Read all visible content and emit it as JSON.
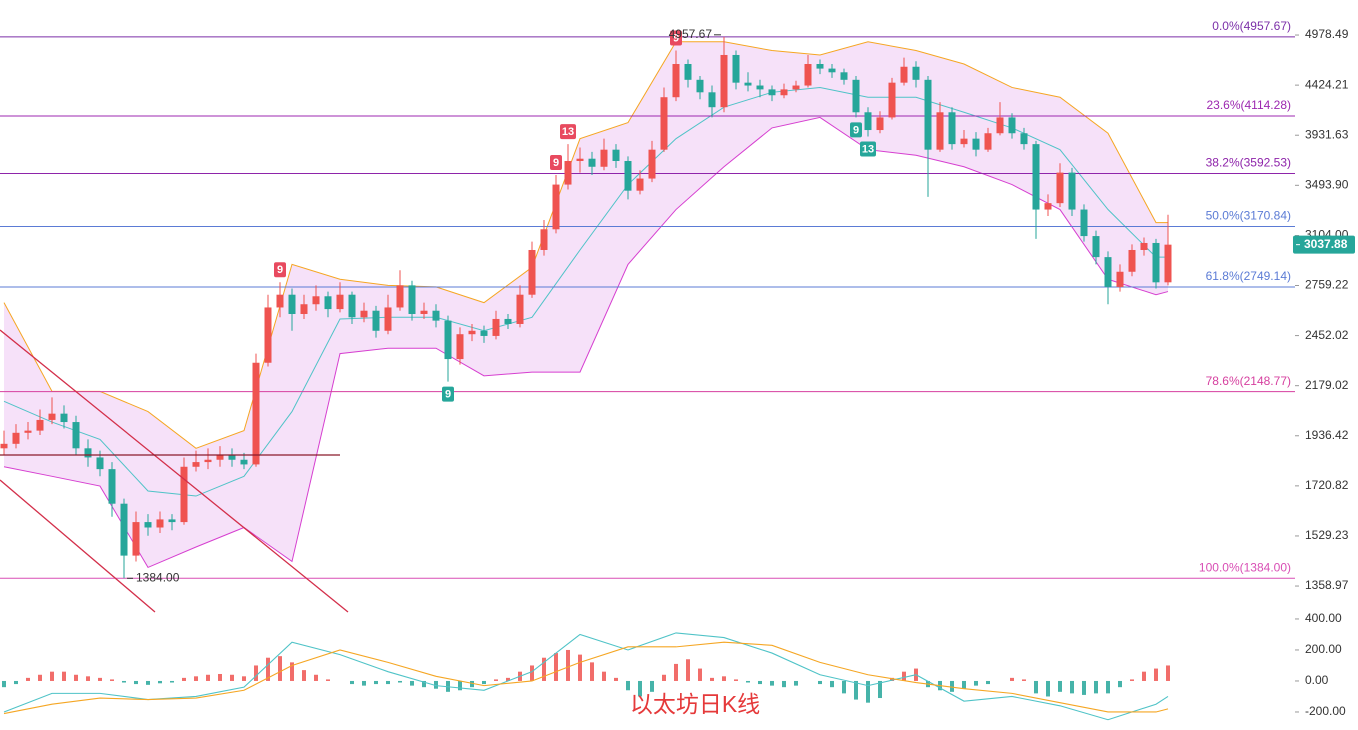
{
  "chart_data": {
    "type": "candlestick",
    "log_scale": true,
    "ylim": [
      1315,
      5407
    ],
    "yticks": [
      4978.49,
      4424.21,
      3931.63,
      {
        "value": 3493.9,
        "label": "3493.90"
      },
      {
        "value": 3104,
        "label": "3104.00"
      },
      2759.22,
      2452.02,
      2179.02,
      1936.42,
      1720.82,
      1529.23,
      1358.97
    ],
    "up_color": "#ef5350",
    "down_color": "#26a69a",
    "open": [
      1880,
      1900,
      1950,
      1960,
      2010,
      2040,
      2000,
      1880,
      1840,
      1790,
      1650,
      1460,
      1580,
      1560,
      1590,
      1580,
      1800,
      1820,
      1830,
      1850,
      1830,
      1810,
      2300,
      2620,
      2700,
      2580,
      2640,
      2690,
      2610,
      2700,
      2560,
      2600,
      2480,
      2620,
      2760,
      2580,
      2600,
      2540,
      2320,
      2460,
      2480,
      2450,
      2550,
      2520,
      2700,
      3000,
      3150,
      3500,
      3700,
      3720,
      3650,
      3800,
      3700,
      3450,
      3550,
      3800,
      4300,
      4650,
      4480,
      4350,
      4200,
      4750,
      4450,
      4420,
      4380,
      4320,
      4380,
      4420,
      4650,
      4600,
      4560,
      4480,
      4150,
      3980,
      4100,
      4450,
      4620,
      4480,
      3800,
      4150,
      3850,
      3900,
      3800,
      3950,
      4100,
      3950,
      3850,
      3300,
      3350,
      3600,
      3300,
      3100,
      2950,
      2750,
      2850,
      3000,
      3050,
      2780
    ],
    "high": [
      1960,
      1990,
      2000,
      2060,
      2120,
      2080,
      2030,
      1920,
      1870,
      1820,
      1670,
      1620,
      1610,
      1620,
      1610,
      1840,
      1870,
      1880,
      1890,
      1880,
      1860,
      2350,
      2700,
      2780,
      2740,
      2700,
      2760,
      2720,
      2780,
      2720,
      2650,
      2630,
      2700,
      2860,
      2790,
      2650,
      2640,
      2570,
      2500,
      2520,
      2510,
      2600,
      2580,
      2760,
      3060,
      3220,
      3580,
      3850,
      3820,
      3780,
      3900,
      3850,
      3740,
      3620,
      3880,
      4400,
      4800,
      4700,
      4520,
      4420,
      4957.67,
      4800,
      4560,
      4480,
      4420,
      4440,
      4470,
      4750,
      4700,
      4650,
      4600,
      4520,
      4200,
      4160,
      4500,
      4720,
      4680,
      4520,
      4250,
      4200,
      3980,
      3960,
      4000,
      4250,
      4140,
      4000,
      3880,
      3420,
      3680,
      3640,
      3340,
      3140,
      2990,
      2900,
      3040,
      3090,
      3080,
      3260
    ],
    "low": [
      1850,
      1880,
      1920,
      1940,
      1990,
      1970,
      1850,
      1800,
      1760,
      1600,
      1384,
      1440,
      1530,
      1540,
      1550,
      1570,
      1780,
      1790,
      1800,
      1800,
      1790,
      1800,
      2280,
      2560,
      2480,
      2550,
      2600,
      2560,
      2590,
      2520,
      2530,
      2440,
      2460,
      2600,
      2540,
      2550,
      2500,
      2200,
      2290,
      2420,
      2410,
      2430,
      2490,
      2500,
      2680,
      2960,
      3120,
      3460,
      3600,
      3580,
      3620,
      3640,
      3380,
      3420,
      3520,
      3780,
      4260,
      4400,
      4280,
      4100,
      4150,
      4380,
      4360,
      4300,
      4260,
      4290,
      4350,
      4400,
      4540,
      4500,
      4430,
      4100,
      3920,
      3950,
      4080,
      4420,
      4400,
      3400,
      3780,
      3800,
      3820,
      3740,
      3780,
      3930,
      3900,
      3800,
      3080,
      3250,
      3320,
      3250,
      3060,
      2900,
      2640,
      2720,
      2820,
      2960,
      2740,
      2760
    ],
    "close": [
      1900,
      1950,
      1960,
      2010,
      2040,
      2000,
      1880,
      1840,
      1790,
      1650,
      1460,
      1580,
      1560,
      1590,
      1580,
      1800,
      1820,
      1830,
      1850,
      1830,
      1810,
      2300,
      2620,
      2700,
      2580,
      2640,
      2690,
      2610,
      2700,
      2560,
      2600,
      2480,
      2620,
      2760,
      2580,
      2600,
      2540,
      2320,
      2460,
      2480,
      2450,
      2550,
      2520,
      2700,
      3000,
      3150,
      3500,
      3700,
      3720,
      3650,
      3800,
      3700,
      3450,
      3550,
      3800,
      4300,
      4650,
      4480,
      4350,
      4200,
      4750,
      4450,
      4420,
      4380,
      4320,
      4380,
      4420,
      4650,
      4600,
      4560,
      4480,
      4150,
      3980,
      4100,
      4450,
      4620,
      4480,
      3800,
      4150,
      3850,
      3900,
      3800,
      3950,
      4100,
      3950,
      3850,
      3300,
      3350,
      3600,
      3300,
      3100,
      2950,
      2750,
      2850,
      3000,
      3050,
      2780,
      3037.88
    ],
    "bollinger": {
      "x": [
        0,
        4,
        8,
        12,
        16,
        20,
        24,
        28,
        32,
        36,
        40,
        44,
        48,
        52,
        56,
        60,
        64,
        68,
        72,
        76,
        80,
        84,
        88,
        92,
        96,
        97
      ],
      "upper": [
        2650,
        2150,
        2150,
        2050,
        1880,
        1960,
        2900,
        2800,
        2760,
        2750,
        2650,
        2880,
        3900,
        4050,
        4900,
        4900,
        4800,
        4750,
        4900,
        4800,
        4650,
        4400,
        4300,
        3950,
        3200,
        3200
      ],
      "middle": [
        2100,
        2000,
        1920,
        1700,
        1680,
        1760,
        2050,
        2550,
        2560,
        2560,
        2480,
        2560,
        3000,
        3500,
        3900,
        4200,
        4350,
        4400,
        4300,
        4300,
        4150,
        4000,
        3800,
        3300,
        2950,
        2950
      ],
      "lower": [
        1800,
        1760,
        1720,
        1420,
        1490,
        1560,
        1440,
        2350,
        2380,
        2380,
        2230,
        2250,
        2250,
        2900,
        3300,
        3650,
        4000,
        4100,
        3800,
        3750,
        3650,
        3500,
        3300,
        2800,
        2700,
        2720
      ],
      "upper_color": "#f5a623",
      "middle_color": "#4fc3c7",
      "lower_color": "#d63fd0",
      "fill_color": "#f4dcf8"
    },
    "fib_levels": [
      {
        "value": 4957.67,
        "label": "0.0%(4957.67)",
        "color": "#7b2fa8"
      },
      {
        "value": 4114.28,
        "label": "23.6%(4114.28)",
        "color": "#9c27b0"
      },
      {
        "value": 3592.53,
        "label": "38.2%(3592.53)",
        "color": "#8e24aa"
      },
      {
        "value": 3170.84,
        "label": "50.0%(3170.84)",
        "color": "#5b7bd5"
      },
      {
        "value": 2749.14,
        "label": "61.8%(2749.14)",
        "color": "#5b7bd5"
      },
      {
        "value": 2148.77,
        "label": "78.6%(2148.77)",
        "color": "#d63f9f"
      },
      {
        "value": 1384,
        "label": "100.0%(1384.00)",
        "color": "#d94fb5"
      }
    ],
    "td_markers": [
      {
        "index": 23,
        "text": "9",
        "position": "above",
        "color": "#e84a5f"
      },
      {
        "index": 37,
        "text": "9",
        "position": "below",
        "color": "#26a69a"
      },
      {
        "index": 46,
        "text": "9",
        "position": "above",
        "color": "#e84a5f"
      },
      {
        "index": 47,
        "text": "13",
        "position": "above",
        "color": "#e84a5f"
      },
      {
        "index": 56,
        "text": "9",
        "position": "above",
        "color": "#e84a5f"
      },
      {
        "index": 71,
        "text": "9",
        "position": "below",
        "color": "#26a69a"
      },
      {
        "index": 72,
        "text": "13",
        "position": "below",
        "color": "#26a69a"
      }
    ],
    "high_label": {
      "index": 60,
      "value": 4957.67,
      "label": "4957.67"
    },
    "low_label": {
      "index": 10,
      "value": 1384,
      "label": "1384.00"
    },
    "last_price": 3037.88,
    "last_price_color": "#26a69a",
    "macd": {
      "y2lim": [
        -284,
        490
      ],
      "y2ticks": [
        {
          "value": 400,
          "label": "400.00"
        },
        {
          "value": 200,
          "label": "200.00"
        },
        {
          "value": 0,
          "label": "0.00"
        },
        {
          "value": -200,
          "label": "-200.00"
        }
      ],
      "histogram": [
        -40,
        -20,
        20,
        40,
        60,
        60,
        40,
        30,
        20,
        10,
        -10,
        -20,
        -25,
        -15,
        -10,
        20,
        30,
        40,
        45,
        40,
        30,
        100,
        150,
        160,
        120,
        70,
        40,
        10,
        0,
        -20,
        -30,
        -20,
        -20,
        -10,
        -30,
        -40,
        -50,
        -70,
        -60,
        -40,
        -20,
        10,
        20,
        60,
        100,
        150,
        180,
        200,
        170,
        120,
        60,
        20,
        -60,
        -100,
        -70,
        40,
        110,
        140,
        80,
        20,
        30,
        10,
        -10,
        -20,
        -30,
        -40,
        -30,
        0,
        -20,
        -40,
        -80,
        -120,
        -140,
        -110,
        20,
        60,
        80,
        -40,
        -60,
        -70,
        -50,
        -30,
        -20,
        0,
        20,
        10,
        -80,
        -100,
        -70,
        -80,
        -90,
        -80,
        -80,
        -40,
        10,
        60,
        80,
        100
      ],
      "line_x": [
        0,
        4,
        8,
        12,
        16,
        20,
        24,
        28,
        32,
        36,
        40,
        44,
        48,
        52,
        56,
        60,
        64,
        68,
        72,
        76,
        80,
        84,
        88,
        92,
        96,
        97
      ],
      "macd_line": [
        -200,
        -80,
        -80,
        -120,
        -100,
        -40,
        250,
        170,
        60,
        -30,
        -60,
        60,
        300,
        200,
        310,
        280,
        180,
        40,
        -30,
        40,
        -130,
        -100,
        -160,
        -250,
        -150,
        -100
      ],
      "signal_line": [
        -210,
        -150,
        -110,
        -120,
        -110,
        -60,
        100,
        200,
        120,
        30,
        -30,
        0,
        120,
        220,
        220,
        250,
        230,
        120,
        40,
        -10,
        -50,
        -80,
        -140,
        -200,
        -200,
        -180
      ],
      "macd_color": "#4fc3c7",
      "signal_color": "#f5a623",
      "pos_color": "#ef5350",
      "neg_color": "#26a69a"
    },
    "watermark": "以太坊日K线"
  }
}
